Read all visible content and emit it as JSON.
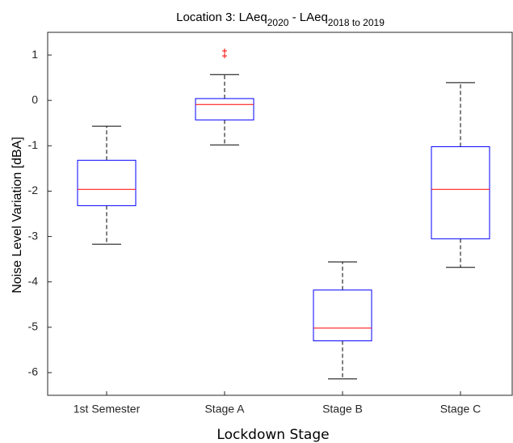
{
  "chart_data": {
    "type": "box",
    "title_parts": [
      {
        "text": "Location 3: LAeq",
        "sub": false
      },
      {
        "text": "2020",
        "sub": true
      },
      {
        "text": " - LAeq",
        "sub": false
      },
      {
        "text": "2018 to 2019",
        "sub": true
      }
    ],
    "x_label": "Lockdown Stage",
    "y_label": "Noise Level Variation [dBA]",
    "categories": [
      "1st Semester",
      "Stage A",
      "Stage B",
      "Stage C"
    ],
    "boxes": [
      {
        "whisker_low": -3.17,
        "q1": -2.32,
        "median": -1.96,
        "q3": -1.32,
        "whisker_high": -0.57,
        "outliers": []
      },
      {
        "whisker_low": -0.98,
        "q1": -0.43,
        "median": -0.09,
        "q3": 0.04,
        "whisker_high": 0.57,
        "outliers": [
          0.98,
          1.09
        ]
      },
      {
        "whisker_low": -6.14,
        "q1": -5.3,
        "median": -5.02,
        "q3": -4.18,
        "whisker_high": -3.56,
        "outliers": []
      },
      {
        "whisker_low": -3.68,
        "q1": -3.05,
        "median": -1.96,
        "q3": -1.02,
        "whisker_high": 0.39,
        "outliers": []
      }
    ],
    "box_color": "#0000ff",
    "median_color": "#ff0000",
    "whisker_color": "#000000",
    "outlier_color": "#ff0000",
    "ylim": [
      -6.5,
      1.5
    ],
    "yticks": [
      1,
      0,
      -1,
      -2,
      -3,
      -4,
      -5,
      -6
    ]
  }
}
